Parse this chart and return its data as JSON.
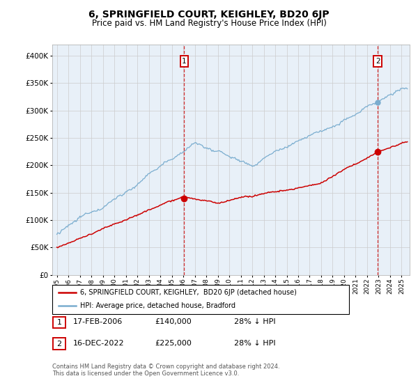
{
  "title": "6, SPRINGFIELD COURT, KEIGHLEY, BD20 6JP",
  "subtitle": "Price paid vs. HM Land Registry's House Price Index (HPI)",
  "red_label": "6, SPRINGFIELD COURT, KEIGHLEY,  BD20 6JP (detached house)",
  "blue_label": "HPI: Average price, detached house, Bradford",
  "transaction1_date": "17-FEB-2006",
  "transaction1_price": "£140,000",
  "transaction1_hpi": "28% ↓ HPI",
  "transaction2_date": "16-DEC-2022",
  "transaction2_price": "£225,000",
  "transaction2_hpi": "28% ↓ HPI",
  "footer": "Contains HM Land Registry data © Crown copyright and database right 2024.\nThis data is licensed under the Open Government Licence v3.0.",
  "ylim": [
    0,
    420000
  ],
  "yticks": [
    0,
    50000,
    100000,
    150000,
    200000,
    250000,
    300000,
    350000,
    400000
  ],
  "red_color": "#cc0000",
  "blue_color": "#7aadcf",
  "vline_color": "#cc0000",
  "grid_color": "#cccccc",
  "plot_bg_color": "#e8f0f8",
  "background_color": "#ffffff",
  "t1_year": 2006.083,
  "t2_year": 2022.917,
  "t1_price": 140000,
  "t2_price": 225000
}
